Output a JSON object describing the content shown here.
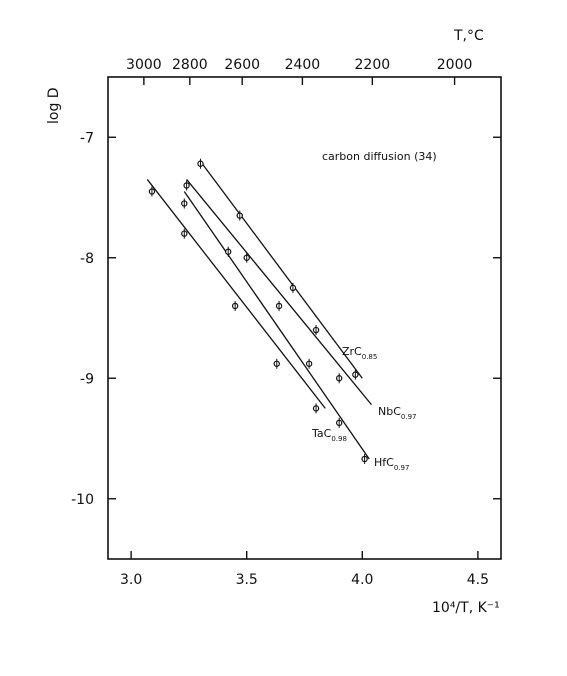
{
  "chart_data": {
    "type": "line",
    "title": "",
    "xlabel": "10⁴/T, K⁻¹",
    "ylabel": "log D",
    "xlim": [
      2.9,
      4.6
    ],
    "ylim": [
      -10.5,
      -6.5
    ],
    "x_ticks": [
      3.0,
      3.5,
      4.0,
      4.5
    ],
    "x_tick_labels": [
      "3.0",
      "3.5",
      "4.0",
      "4.5"
    ],
    "y_ticks": [
      -7,
      -8,
      -9,
      -10
    ],
    "y_tick_labels": [
      "-7",
      "-8",
      "-9",
      "-10"
    ],
    "top_axis": {
      "label": "T,°C",
      "ticks_celsius": [
        3000,
        2800,
        2600,
        2400,
        2200,
        2000
      ],
      "tick_labels": [
        "3000",
        "2800",
        "2600",
        "2400",
        "2200",
        "2000"
      ]
    },
    "grid": false,
    "annotation": "carbon diffusion (34)",
    "series": [
      {
        "name": "ZrC0.85",
        "label_main": "ZrC",
        "label_sub": "0.85",
        "line": [
          [
            3.3,
            -7.2
          ],
          [
            4.0,
            -9.0
          ]
        ],
        "points": [
          [
            3.3,
            -7.22
          ],
          [
            3.47,
            -7.65
          ],
          [
            3.7,
            -8.25
          ],
          [
            3.8,
            -8.6
          ],
          [
            3.97,
            -8.97
          ]
        ]
      },
      {
        "name": "NbC0.97",
        "label_main": "NbC",
        "label_sub": "0.97",
        "line": [
          [
            3.24,
            -7.35
          ],
          [
            4.04,
            -9.22
          ]
        ],
        "points": [
          [
            3.24,
            -7.4
          ],
          [
            3.5,
            -8.0
          ],
          [
            3.9,
            -9.0
          ]
        ]
      },
      {
        "name": "HfC0.97",
        "label_main": "HfC",
        "label_sub": "0.97",
        "line": [
          [
            3.23,
            -7.45
          ],
          [
            4.03,
            -9.67
          ]
        ],
        "points": [
          [
            3.23,
            -7.55
          ],
          [
            3.42,
            -7.95
          ],
          [
            3.64,
            -8.4
          ],
          [
            3.77,
            -8.88
          ],
          [
            3.9,
            -9.37
          ],
          [
            4.01,
            -9.67
          ]
        ]
      },
      {
        "name": "TaC0.98",
        "label_main": "TaC",
        "label_sub": "0.98",
        "line": [
          [
            3.07,
            -7.35
          ],
          [
            3.84,
            -9.25
          ]
        ],
        "points": [
          [
            3.09,
            -7.45
          ],
          [
            3.23,
            -7.8
          ],
          [
            3.45,
            -8.4
          ],
          [
            3.63,
            -8.88
          ],
          [
            3.8,
            -9.25
          ]
        ]
      }
    ]
  }
}
